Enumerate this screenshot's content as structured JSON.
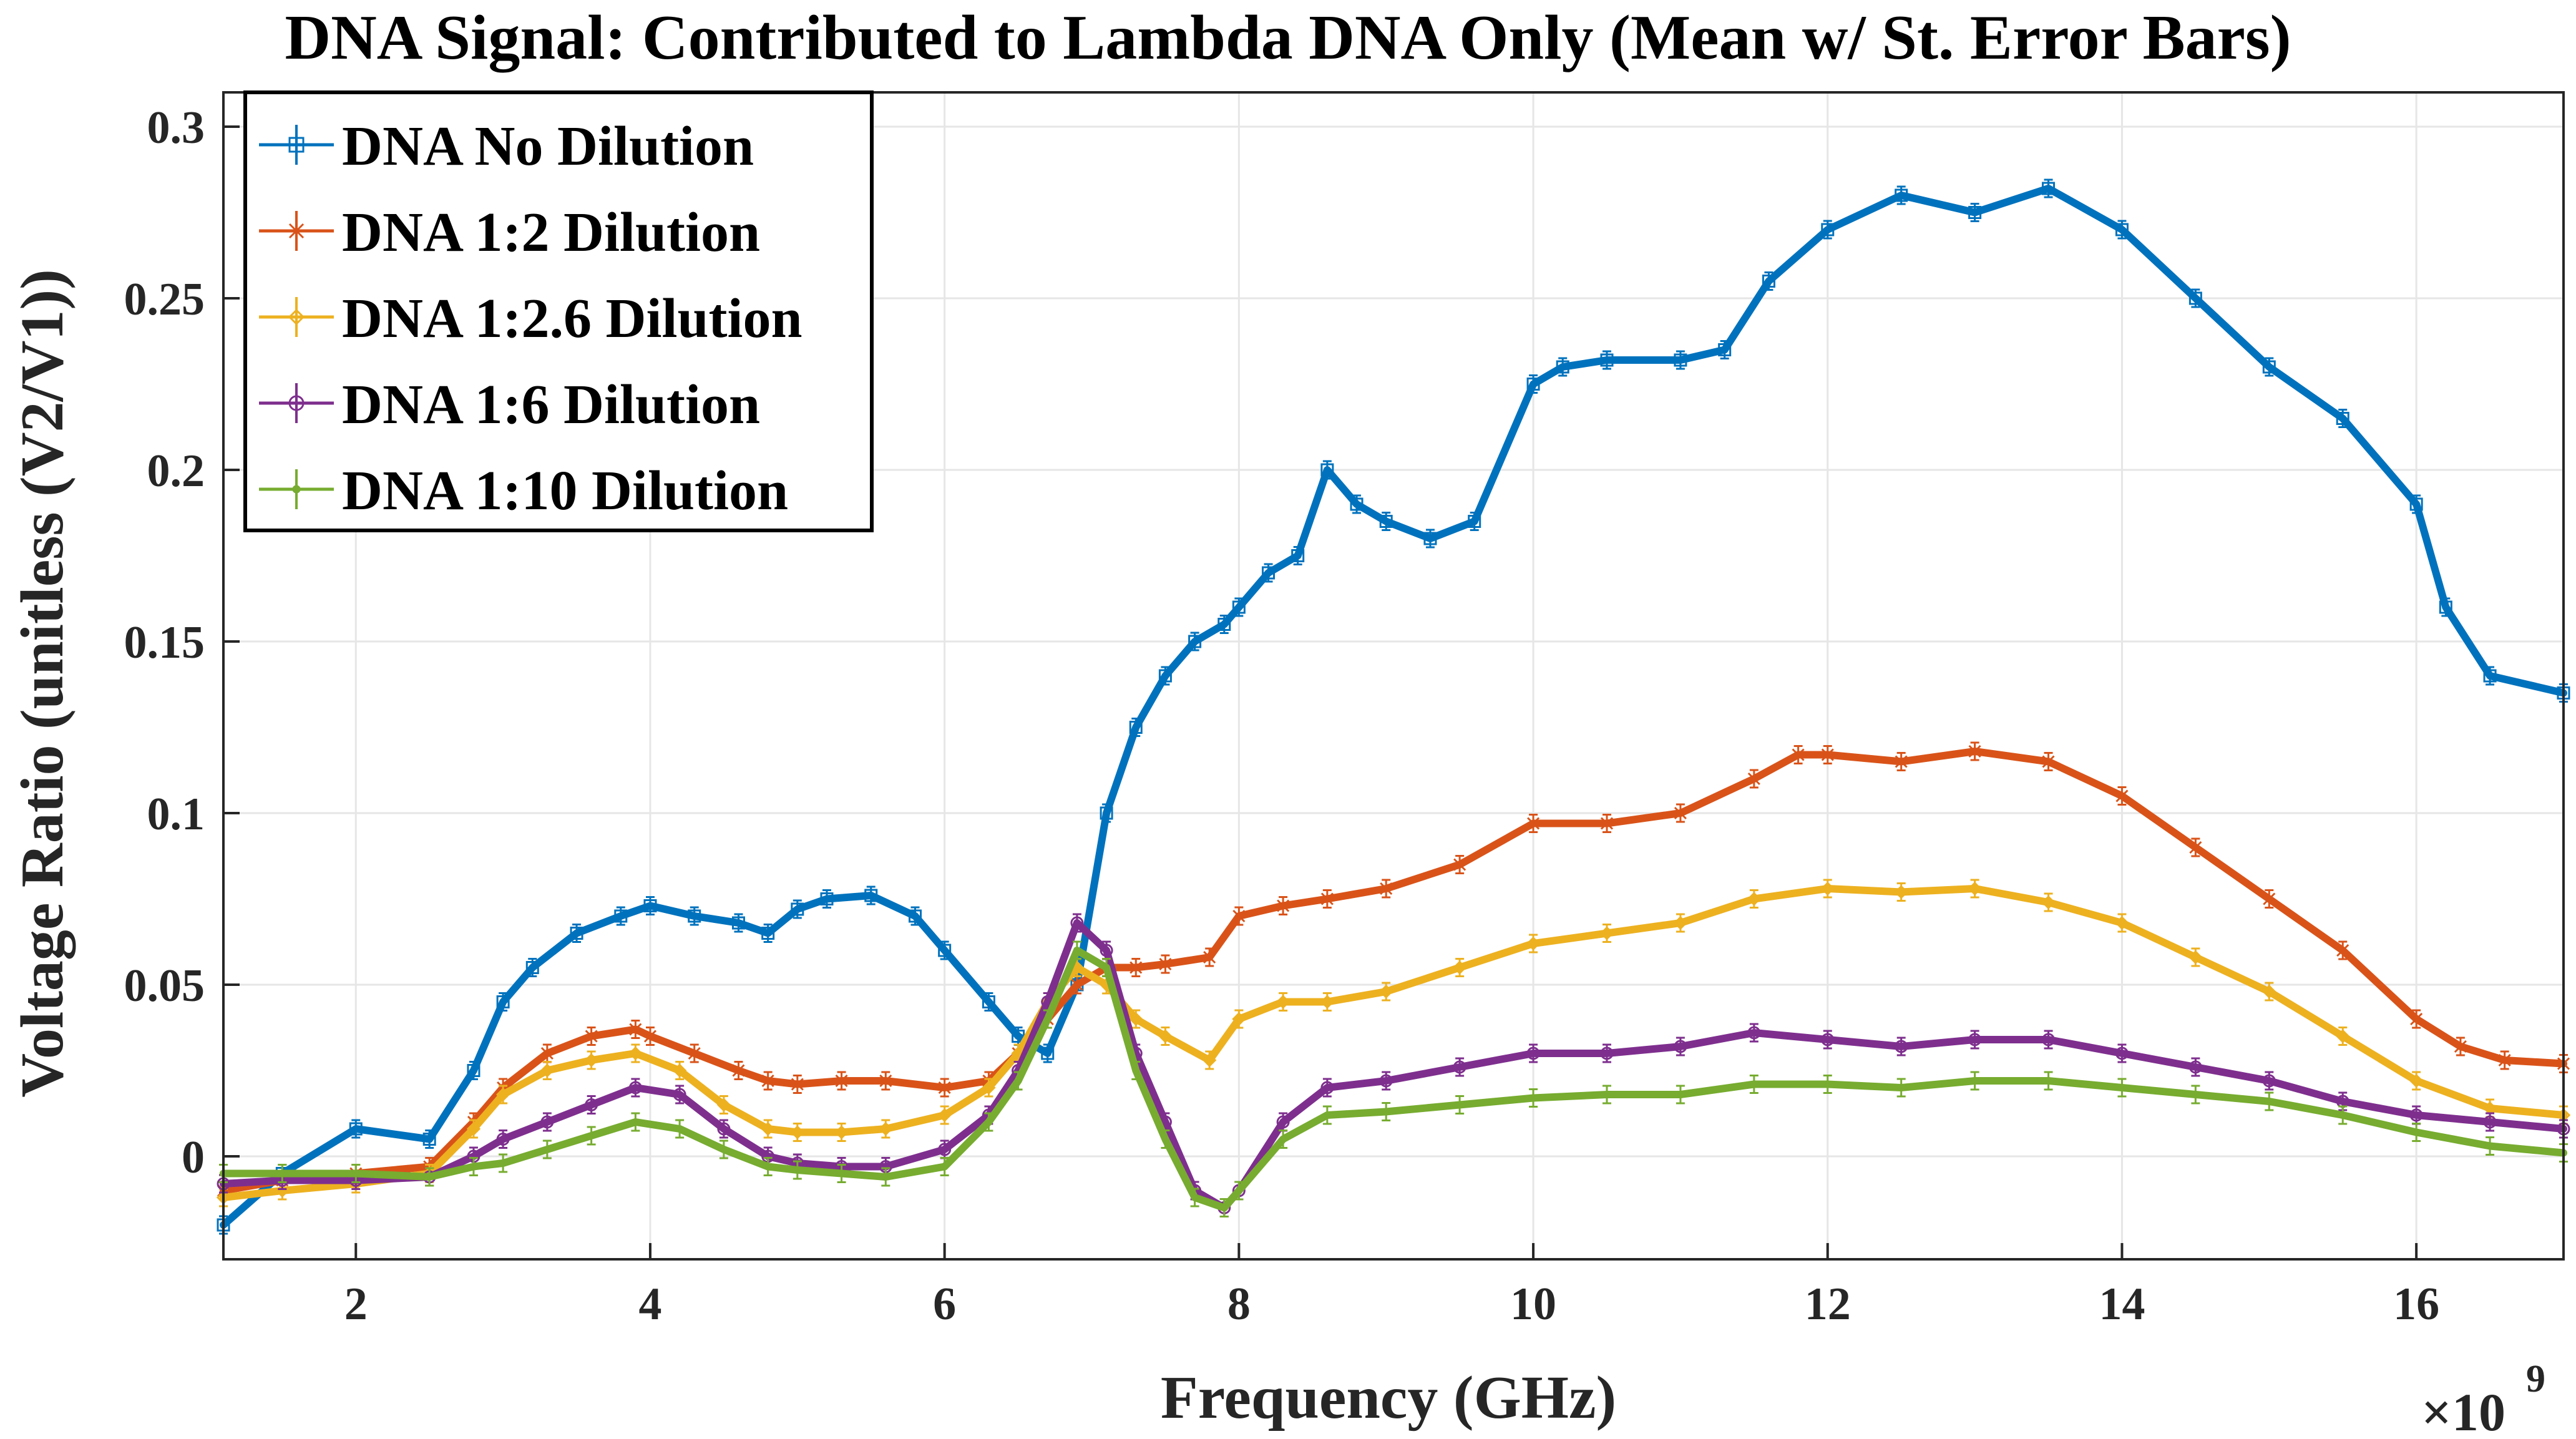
{
  "chart_data": {
    "type": "line",
    "title": "DNA Signal: Contributed to Lambda DNA Only (Mean w/ St. Error Bars)",
    "xlabel": "Frequency (GHz)",
    "ylabel": "Voltage Ratio (unitless (V2/V1))",
    "x_exponent_label": "×10",
    "x_exponent_power": "9",
    "xlim": [
      1.1,
      17.0
    ],
    "ylim": [
      -0.03,
      0.31
    ],
    "x_ticks": [
      2,
      4,
      6,
      8,
      10,
      12,
      14,
      16
    ],
    "x_tick_labels": [
      "2",
      "4",
      "6",
      "8",
      "10",
      "12",
      "14",
      "16"
    ],
    "y_ticks": [
      0,
      0.05,
      0.1,
      0.15,
      0.2,
      0.25,
      0.3
    ],
    "y_tick_labels": [
      "0",
      "0.05",
      "0.1",
      "0.15",
      "0.2",
      "0.25",
      "0.3"
    ],
    "grid": true,
    "legend_position": "top-left",
    "series": [
      {
        "name": "DNA No Dilution",
        "color": "#0072BD",
        "marker": "square",
        "x": [
          1.1,
          1.5,
          2.0,
          2.5,
          2.8,
          3.0,
          3.2,
          3.5,
          3.8,
          4.0,
          4.3,
          4.6,
          4.8,
          5.0,
          5.2,
          5.5,
          5.8,
          6.0,
          6.3,
          6.5,
          6.7,
          6.9,
          7.1,
          7.3,
          7.5,
          7.7,
          7.9,
          8.0,
          8.2,
          8.4,
          8.6,
          8.8,
          9.0,
          9.3,
          9.6,
          10.0,
          10.2,
          10.5,
          11.0,
          11.3,
          11.6,
          12.0,
          12.5,
          13.0,
          13.5,
          14.0,
          14.5,
          15.0,
          15.5,
          16.0,
          16.2,
          16.5,
          17.0
        ],
        "y": [
          -0.02,
          -0.005,
          0.008,
          0.005,
          0.025,
          0.045,
          0.055,
          0.065,
          0.07,
          0.073,
          0.07,
          0.068,
          0.065,
          0.072,
          0.075,
          0.076,
          0.07,
          0.06,
          0.045,
          0.035,
          0.03,
          0.05,
          0.1,
          0.125,
          0.14,
          0.15,
          0.155,
          0.16,
          0.17,
          0.175,
          0.2,
          0.19,
          0.185,
          0.18,
          0.185,
          0.225,
          0.23,
          0.232,
          0.232,
          0.235,
          0.255,
          0.27,
          0.28,
          0.275,
          0.282,
          0.27,
          0.25,
          0.23,
          0.215,
          0.19,
          0.16,
          0.14,
          0.135
        ]
      },
      {
        "name": "DNA 1:2 Dilution",
        "color": "#D95319",
        "marker": "x",
        "x": [
          1.1,
          1.5,
          2.0,
          2.5,
          2.8,
          3.0,
          3.3,
          3.6,
          3.9,
          4.0,
          4.3,
          4.6,
          4.8,
          5.0,
          5.3,
          5.6,
          6.0,
          6.3,
          6.5,
          6.7,
          6.9,
          7.1,
          7.3,
          7.5,
          7.8,
          8.0,
          8.3,
          8.6,
          9.0,
          9.5,
          10.0,
          10.5,
          11.0,
          11.5,
          11.8,
          12.0,
          12.5,
          13.0,
          13.5,
          14.0,
          14.5,
          15.0,
          15.5,
          16.0,
          16.3,
          16.6,
          17.0
        ],
        "y": [
          -0.01,
          -0.007,
          -0.005,
          -0.003,
          0.01,
          0.02,
          0.03,
          0.035,
          0.037,
          0.035,
          0.03,
          0.025,
          0.022,
          0.021,
          0.022,
          0.022,
          0.02,
          0.022,
          0.03,
          0.04,
          0.05,
          0.055,
          0.055,
          0.056,
          0.058,
          0.07,
          0.073,
          0.075,
          0.078,
          0.085,
          0.097,
          0.097,
          0.1,
          0.11,
          0.117,
          0.117,
          0.115,
          0.118,
          0.115,
          0.105,
          0.09,
          0.075,
          0.06,
          0.04,
          0.032,
          0.028,
          0.027
        ]
      },
      {
        "name": "DNA 1:2.6 Dilution",
        "color": "#EDB120",
        "marker": "diamond",
        "x": [
          1.1,
          1.5,
          2.0,
          2.5,
          2.8,
          3.0,
          3.3,
          3.6,
          3.9,
          4.2,
          4.5,
          4.8,
          5.0,
          5.3,
          5.6,
          6.0,
          6.3,
          6.5,
          6.7,
          6.9,
          7.1,
          7.3,
          7.5,
          7.8,
          8.0,
          8.3,
          8.6,
          9.0,
          9.5,
          10.0,
          10.5,
          11.0,
          11.5,
          12.0,
          12.5,
          13.0,
          13.5,
          14.0,
          14.5,
          15.0,
          15.5,
          16.0,
          16.5,
          17.0
        ],
        "y": [
          -0.012,
          -0.01,
          -0.008,
          -0.005,
          0.008,
          0.018,
          0.025,
          0.028,
          0.03,
          0.025,
          0.015,
          0.008,
          0.007,
          0.007,
          0.008,
          0.012,
          0.02,
          0.03,
          0.045,
          0.055,
          0.05,
          0.04,
          0.035,
          0.028,
          0.04,
          0.045,
          0.045,
          0.048,
          0.055,
          0.062,
          0.065,
          0.068,
          0.075,
          0.078,
          0.077,
          0.078,
          0.074,
          0.068,
          0.058,
          0.048,
          0.035,
          0.022,
          0.014,
          0.012
        ]
      },
      {
        "name": "DNA 1:6 Dilution",
        "color": "#7E2F8E",
        "marker": "circle",
        "x": [
          1.1,
          1.5,
          2.0,
          2.5,
          2.8,
          3.0,
          3.3,
          3.6,
          3.9,
          4.2,
          4.5,
          4.8,
          5.0,
          5.3,
          5.6,
          6.0,
          6.3,
          6.5,
          6.7,
          6.9,
          7.1,
          7.3,
          7.5,
          7.7,
          7.9,
          8.0,
          8.3,
          8.6,
          9.0,
          9.5,
          10.0,
          10.5,
          11.0,
          11.5,
          12.0,
          12.5,
          13.0,
          13.5,
          14.0,
          14.5,
          15.0,
          15.5,
          16.0,
          16.5,
          17.0
        ],
        "y": [
          -0.008,
          -0.007,
          -0.007,
          -0.006,
          0.0,
          0.005,
          0.01,
          0.015,
          0.02,
          0.018,
          0.008,
          0.0,
          -0.002,
          -0.003,
          -0.003,
          0.002,
          0.012,
          0.025,
          0.045,
          0.068,
          0.06,
          0.03,
          0.01,
          -0.01,
          -0.015,
          -0.01,
          0.01,
          0.02,
          0.022,
          0.026,
          0.03,
          0.03,
          0.032,
          0.036,
          0.034,
          0.032,
          0.034,
          0.034,
          0.03,
          0.026,
          0.022,
          0.016,
          0.012,
          0.01,
          0.008
        ]
      },
      {
        "name": "DNA 1:10 Dilution",
        "color": "#77AC30",
        "marker": "point",
        "x": [
          1.1,
          1.5,
          2.0,
          2.5,
          2.8,
          3.0,
          3.3,
          3.6,
          3.9,
          4.2,
          4.5,
          4.8,
          5.0,
          5.3,
          5.6,
          6.0,
          6.3,
          6.5,
          6.7,
          6.9,
          7.1,
          7.3,
          7.5,
          7.7,
          7.9,
          8.0,
          8.3,
          8.6,
          9.0,
          9.5,
          10.0,
          10.5,
          11.0,
          11.5,
          12.0,
          12.5,
          13.0,
          13.5,
          14.0,
          14.5,
          15.0,
          15.5,
          16.0,
          16.5,
          17.0
        ],
        "y": [
          -0.005,
          -0.005,
          -0.005,
          -0.006,
          -0.003,
          -0.002,
          0.002,
          0.006,
          0.01,
          0.008,
          0.002,
          -0.003,
          -0.004,
          -0.005,
          -0.006,
          -0.003,
          0.01,
          0.022,
          0.04,
          0.06,
          0.055,
          0.025,
          0.005,
          -0.012,
          -0.015,
          -0.01,
          0.005,
          0.012,
          0.013,
          0.015,
          0.017,
          0.018,
          0.018,
          0.021,
          0.021,
          0.02,
          0.022,
          0.022,
          0.02,
          0.018,
          0.016,
          0.012,
          0.007,
          0.003,
          0.001
        ]
      }
    ]
  }
}
